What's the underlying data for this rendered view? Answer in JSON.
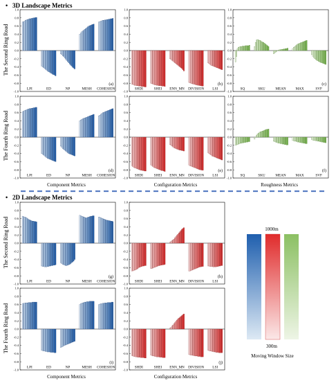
{
  "sections": [
    {
      "title": "3D Landscape Metrics"
    },
    {
      "title": "2D Landscape Metrics"
    }
  ],
  "row_labels": {
    "second": "The Second Ring Road",
    "fourth": "The Fourth Ring Road"
  },
  "group_labels": {
    "component": "Component Metrics",
    "configuration": "Configuration Metrics",
    "roughness": "Roughness Metrics"
  },
  "legend": {
    "top": "1000m",
    "bottom": "300m",
    "caption": "Moving Window Size",
    "colors": {
      "component": "#2f6cb0",
      "configuration": "#d93a3a",
      "roughness": "#8bbf5a"
    }
  },
  "chart_data": [
    {
      "panel": "(a)",
      "type": "bar",
      "family": "component",
      "ylim": [
        -1.0,
        1.0
      ],
      "yticks": [
        "1.0",
        "0.8",
        "0.6",
        "0.4",
        "0.2",
        "0.0",
        "-0.2",
        "-0.4",
        "-0.6",
        "-0.8",
        "-1.0"
      ],
      "categories": [
        "LPI",
        "ED",
        "NP",
        "MESH",
        "COHESION"
      ],
      "values": [
        [
          0.7,
          0.71,
          0.72,
          0.74,
          0.75,
          0.76,
          0.77,
          0.78,
          0.78,
          0.79,
          0.79,
          0.8,
          0.8,
          0.81,
          0.81
        ],
        [
          -0.38,
          -0.4,
          -0.42,
          -0.44,
          -0.46,
          -0.48,
          -0.5,
          -0.52,
          -0.53,
          -0.55,
          -0.56,
          -0.58,
          -0.59,
          -0.6,
          -0.62
        ],
        [
          -0.08,
          -0.1,
          -0.13,
          -0.15,
          -0.18,
          -0.21,
          -0.24,
          -0.27,
          -0.3,
          -0.33,
          -0.36,
          -0.38,
          -0.41,
          -0.43,
          -0.45
        ],
        [
          0.4,
          0.43,
          0.46,
          0.48,
          0.5,
          0.52,
          0.54,
          0.56,
          0.58,
          0.6,
          0.61,
          0.62,
          0.63,
          0.64,
          0.65
        ],
        [
          0.7,
          0.71,
          0.72,
          0.73,
          0.74,
          0.74,
          0.75,
          0.75,
          0.76,
          0.76,
          0.77,
          0.77,
          0.78,
          0.78,
          0.79
        ]
      ]
    },
    {
      "panel": "(b)",
      "type": "bar",
      "family": "configuration",
      "ylim": [
        -1.0,
        1.0
      ],
      "yticks": [
        "1.0",
        "0.8",
        "0.6",
        "0.4",
        "0.2",
        "0.0",
        "-0.2",
        "-0.4",
        "-0.6",
        "-0.8",
        "-1.0"
      ],
      "categories": [
        "SHDI",
        "SHEI",
        "ENN_MN",
        "DIVISION",
        "LSI"
      ],
      "values": [
        [
          -0.82,
          -0.83,
          -0.84,
          -0.85,
          -0.85,
          -0.86,
          -0.86,
          -0.87,
          -0.87,
          -0.87,
          -0.88,
          -0.88,
          -0.88,
          -0.89,
          -0.89
        ],
        [
          -0.8,
          -0.81,
          -0.82,
          -0.83,
          -0.84,
          -0.84,
          -0.85,
          -0.85,
          -0.86,
          -0.86,
          -0.86,
          -0.87,
          -0.87,
          -0.87,
          -0.88
        ],
        [
          -0.2,
          -0.22,
          -0.24,
          -0.26,
          -0.28,
          -0.3,
          -0.32,
          -0.34,
          -0.36,
          -0.38,
          -0.4,
          -0.42,
          -0.44,
          -0.47,
          -0.5
        ],
        [
          -0.78,
          -0.79,
          -0.8,
          -0.81,
          -0.82,
          -0.82,
          -0.83,
          -0.84,
          -0.84,
          -0.85,
          -0.85,
          -0.86,
          -0.86,
          -0.87,
          -0.87
        ],
        [
          -0.3,
          -0.32,
          -0.34,
          -0.36,
          -0.37,
          -0.38,
          -0.39,
          -0.4,
          -0.41,
          -0.42,
          -0.43,
          -0.44,
          -0.45,
          -0.46,
          -0.47
        ]
      ]
    },
    {
      "panel": "(c)",
      "type": "bar",
      "family": "roughness",
      "ylim": [
        -1.0,
        1.0
      ],
      "yticks": [
        "1.0",
        "0.8",
        "0.6",
        "0.4",
        "0.2",
        "0.0",
        "-0.2",
        "-0.4",
        "-0.6",
        "-0.8",
        "-1.0"
      ],
      "categories": [
        "SQ",
        "SKU",
        "MEAN",
        "MAX",
        "SVF"
      ],
      "values": [
        [
          -0.28,
          -0.15,
          0.05,
          0.08,
          0.09,
          0.1,
          0.1,
          0.11,
          0.11,
          0.11,
          0.12,
          0.12,
          0.12,
          0.12,
          0.13
        ],
        [
          0.1,
          0.2,
          0.26,
          0.27,
          0.26,
          0.25,
          0.24,
          0.22,
          0.21,
          0.2,
          0.18,
          0.16,
          0.14,
          0.12,
          0.1
        ],
        [
          -0.08,
          -0.06,
          -0.04,
          -0.02,
          0.0,
          0.01,
          0.02,
          0.02,
          0.03,
          0.03,
          0.04,
          0.04,
          0.05,
          0.05,
          0.06
        ],
        [
          0.05,
          0.08,
          0.1,
          0.12,
          0.14,
          0.16,
          0.17,
          0.18,
          0.19,
          0.2,
          0.21,
          0.22,
          0.23,
          0.24,
          0.25
        ],
        [
          -0.1,
          -0.14,
          -0.17,
          -0.2,
          -0.22,
          -0.24,
          -0.25,
          -0.27,
          -0.28,
          -0.29,
          -0.3,
          -0.31,
          -0.32,
          -0.33,
          -0.34
        ]
      ]
    },
    {
      "panel": "(d)",
      "type": "bar",
      "family": "component",
      "ylim": [
        -1.0,
        1.0
      ],
      "yticks": [
        "1.0",
        "0.8",
        "0.6",
        "0.4",
        "0.2",
        "0.0",
        "-0.2",
        "-0.4",
        "-0.6",
        "-0.8",
        "-1.0"
      ],
      "categories": [
        "LPI",
        "ED",
        "NP",
        "MESH",
        "COHESION"
      ],
      "values": [
        [
          0.62,
          0.64,
          0.65,
          0.66,
          0.67,
          0.68,
          0.69,
          0.7,
          0.7,
          0.71,
          0.71,
          0.72,
          0.72,
          0.73,
          0.73
        ],
        [
          -0.4,
          -0.42,
          -0.44,
          -0.46,
          -0.48,
          -0.5,
          -0.52,
          -0.53,
          -0.54,
          -0.55,
          -0.56,
          -0.57,
          -0.58,
          -0.59,
          -0.6
        ],
        [
          -0.22,
          -0.25,
          -0.28,
          -0.3,
          -0.32,
          -0.34,
          -0.36,
          -0.38,
          -0.4,
          -0.41,
          -0.42,
          -0.43,
          -0.44,
          -0.45,
          -0.46
        ],
        [
          0.4,
          0.42,
          0.44,
          0.45,
          0.46,
          0.47,
          0.48,
          0.49,
          0.5,
          0.51,
          0.52,
          0.53,
          0.54,
          0.55,
          0.56
        ],
        [
          0.52,
          0.54,
          0.56,
          0.58,
          0.6,
          0.61,
          0.62,
          0.63,
          0.64,
          0.65,
          0.66,
          0.67,
          0.68,
          0.69,
          0.7
        ]
      ]
    },
    {
      "panel": "(e)",
      "type": "bar",
      "family": "configuration",
      "ylim": [
        -1.0,
        1.0
      ],
      "yticks": [
        "1.0",
        "0.8",
        "0.6",
        "0.4",
        "0.2",
        "0.0",
        "-0.2",
        "-0.4",
        "-0.6",
        "-0.8",
        "-1.0"
      ],
      "categories": [
        "SHDI",
        "SHEI",
        "ENN_MN",
        "DIVISION",
        "LSI"
      ],
      "values": [
        [
          -0.7,
          -0.72,
          -0.74,
          -0.75,
          -0.76,
          -0.77,
          -0.78,
          -0.79,
          -0.8,
          -0.81,
          -0.81,
          -0.82,
          -0.82,
          -0.83,
          -0.83
        ],
        [
          -0.68,
          -0.7,
          -0.72,
          -0.74,
          -0.75,
          -0.76,
          -0.77,
          -0.78,
          -0.79,
          -0.8,
          -0.81,
          -0.82,
          -0.82,
          -0.83,
          -0.84
        ],
        [
          -0.18,
          -0.2,
          -0.22,
          -0.24,
          -0.26,
          -0.27,
          -0.28,
          -0.29,
          -0.3,
          -0.31,
          -0.32,
          -0.32,
          -0.33,
          -0.33,
          -0.34
        ],
        [
          -0.68,
          -0.7,
          -0.71,
          -0.72,
          -0.73,
          -0.74,
          -0.75,
          -0.76,
          -0.77,
          -0.78,
          -0.79,
          -0.8,
          -0.8,
          -0.81,
          -0.81
        ],
        [
          -0.38,
          -0.4,
          -0.42,
          -0.44,
          -0.46,
          -0.47,
          -0.48,
          -0.49,
          -0.5,
          -0.51,
          -0.52,
          -0.53,
          -0.54,
          -0.55,
          -0.56
        ]
      ]
    },
    {
      "panel": "(f)",
      "type": "bar",
      "family": "roughness",
      "ylim": [
        -1.0,
        1.0
      ],
      "yticks": [
        "1.0",
        "0.8",
        "0.6",
        "0.4",
        "0.2",
        "0.0",
        "-0.2",
        "-0.4",
        "-0.6",
        "-0.8",
        "-1.0"
      ],
      "categories": [
        "SQ",
        "SKU",
        "MEAN",
        "MAX",
        "SVF"
      ],
      "values": [
        [
          -0.2,
          -0.19,
          -0.18,
          -0.17,
          -0.16,
          -0.15,
          -0.15,
          -0.14,
          -0.14,
          -0.13,
          -0.13,
          -0.12,
          -0.12,
          -0.11,
          -0.11
        ],
        [
          -0.05,
          0.0,
          0.05,
          0.08,
          0.1,
          0.12,
          0.13,
          0.14,
          0.15,
          0.16,
          0.17,
          0.18,
          0.19,
          0.19,
          0.2
        ],
        [
          -0.1,
          -0.11,
          -0.12,
          -0.13,
          -0.14,
          -0.15,
          -0.15,
          -0.16,
          -0.16,
          -0.17,
          -0.17,
          -0.18,
          -0.18,
          -0.19,
          -0.19
        ],
        [
          -0.08,
          -0.09,
          -0.1,
          -0.1,
          -0.11,
          -0.12,
          -0.12,
          -0.13,
          -0.13,
          -0.14,
          -0.14,
          -0.15,
          -0.15,
          -0.16,
          -0.16
        ],
        [
          -0.06,
          -0.07,
          -0.08,
          -0.08,
          -0.09,
          -0.09,
          -0.1,
          -0.1,
          -0.11,
          -0.11,
          -0.12,
          -0.12,
          -0.13,
          -0.13,
          -0.14
        ]
      ]
    },
    {
      "panel": "(g)",
      "type": "bar",
      "family": "component",
      "ylim": [
        -1.0,
        1.0
      ],
      "yticks": [
        "1.0",
        "0.8",
        "0.6",
        "0.4",
        "0.2",
        "0.0",
        "-0.2",
        "-0.4",
        "-0.6",
        "-0.8",
        "-1.0"
      ],
      "categories": [
        "LPI",
        "ED",
        "NP",
        "MESH",
        "COHESION"
      ],
      "values": [
        [
          0.66,
          0.65,
          0.64,
          0.63,
          0.62,
          0.6,
          0.58,
          0.57,
          0.56,
          0.55,
          0.54,
          0.54,
          0.53,
          0.53,
          0.52
        ],
        [
          -0.56,
          -0.57,
          -0.57,
          -0.58,
          -0.58,
          -0.58,
          -0.57,
          -0.57,
          -0.56,
          -0.56,
          -0.55,
          -0.55,
          -0.54,
          -0.54,
          -0.53
        ],
        [
          -0.48,
          -0.5,
          -0.52,
          -0.53,
          -0.54,
          -0.55,
          -0.55,
          -0.54,
          -0.53,
          -0.52,
          -0.5,
          -0.48,
          -0.46,
          -0.44,
          -0.4
        ],
        [
          0.68,
          0.67,
          0.66,
          0.65,
          0.64,
          0.63,
          0.62,
          0.62,
          0.63,
          0.64,
          0.65,
          0.66,
          0.66,
          0.67,
          0.67
        ],
        [
          0.64,
          0.63,
          0.62,
          0.61,
          0.6,
          0.59,
          0.58,
          0.57,
          0.56,
          0.56,
          0.55,
          0.55,
          0.54,
          0.54,
          0.53
        ]
      ]
    },
    {
      "panel": "(h)",
      "type": "bar",
      "family": "configuration",
      "ylim": [
        -1.0,
        1.0
      ],
      "yticks": [
        "1.0",
        "0.8",
        "0.6",
        "0.4",
        "0.2",
        "0.0",
        "-0.2",
        "-0.4",
        "-0.6",
        "-0.8",
        "-1.0"
      ],
      "categories": [
        "SHDI",
        "SHEI",
        "ENN_MN",
        "DIVISION",
        "LSI"
      ],
      "values": [
        [
          -0.68,
          -0.68,
          -0.67,
          -0.66,
          -0.65,
          -0.64,
          -0.62,
          -0.6,
          -0.59,
          -0.58,
          -0.57,
          -0.56,
          -0.56,
          -0.55,
          -0.55
        ],
        [
          -0.62,
          -0.62,
          -0.61,
          -0.6,
          -0.59,
          -0.58,
          -0.57,
          -0.56,
          -0.55,
          -0.55,
          -0.54,
          -0.54,
          -0.53,
          -0.53,
          -0.52
        ],
        [
          0.02,
          0.04,
          0.06,
          0.08,
          0.1,
          0.13,
          0.16,
          0.19,
          0.22,
          0.25,
          0.28,
          0.31,
          0.34,
          0.36,
          0.38
        ],
        [
          -0.68,
          -0.68,
          -0.67,
          -0.66,
          -0.65,
          -0.64,
          -0.63,
          -0.62,
          -0.61,
          -0.6,
          -0.59,
          -0.58,
          -0.58,
          -0.57,
          -0.57
        ],
        [
          -0.56,
          -0.56,
          -0.57,
          -0.57,
          -0.57,
          -0.58,
          -0.58,
          -0.58,
          -0.58,
          -0.57,
          -0.57,
          -0.56,
          -0.56,
          -0.55,
          -0.55
        ]
      ]
    },
    {
      "panel": "(i)",
      "type": "bar",
      "family": "component",
      "ylim": [
        -1.0,
        1.0
      ],
      "yticks": [
        "1.0",
        "0.8",
        "0.6",
        "0.4",
        "0.2",
        "0.0",
        "-0.2",
        "-0.4",
        "-0.6",
        "-0.8",
        "-1.0"
      ],
      "categories": [
        "LPI",
        "ED",
        "NP",
        "MESH",
        "COHESION"
      ],
      "values": [
        [
          0.62,
          0.63,
          0.63,
          0.64,
          0.64,
          0.64,
          0.65,
          0.65,
          0.65,
          0.65,
          0.66,
          0.66,
          0.66,
          0.66,
          0.66
        ],
        [
          -0.52,
          -0.53,
          -0.54,
          -0.54,
          -0.55,
          -0.55,
          -0.56,
          -0.56,
          -0.56,
          -0.57,
          -0.57,
          -0.57,
          -0.57,
          -0.58,
          -0.58
        ],
        [
          -0.45,
          -0.44,
          -0.43,
          -0.41,
          -0.4,
          -0.39,
          -0.38,
          -0.37,
          -0.36,
          -0.35,
          -0.34,
          -0.33,
          -0.32,
          -0.31,
          -0.3
        ],
        [
          0.6,
          0.62,
          0.63,
          0.64,
          0.65,
          0.66,
          0.66,
          0.67,
          0.67,
          0.67,
          0.68,
          0.68,
          0.68,
          0.68,
          0.68
        ],
        [
          0.6,
          0.61,
          0.62,
          0.62,
          0.63,
          0.63,
          0.64,
          0.64,
          0.64,
          0.65,
          0.65,
          0.65,
          0.65,
          0.66,
          0.66
        ]
      ]
    },
    {
      "panel": "(j)",
      "type": "bar",
      "family": "configuration",
      "ylim": [
        -1.0,
        1.0
      ],
      "yticks": [
        "1.0",
        "0.8",
        "0.6",
        "0.4",
        "0.2",
        "0.0",
        "-0.2",
        "-0.4",
        "-0.6",
        "-0.8",
        "-1.0"
      ],
      "categories": [
        "SHDI",
        "SHEI",
        "ENN_MN",
        "DIVISION",
        "LSI"
      ],
      "values": [
        [
          -0.65,
          -0.66,
          -0.67,
          -0.67,
          -0.68,
          -0.68,
          -0.69,
          -0.69,
          -0.69,
          -0.7,
          -0.7,
          -0.7,
          -0.7,
          -0.71,
          -0.71
        ],
        [
          -0.64,
          -0.65,
          -0.66,
          -0.66,
          -0.67,
          -0.67,
          -0.68,
          -0.68,
          -0.68,
          -0.69,
          -0.69,
          -0.69,
          -0.7,
          -0.7,
          -0.7
        ],
        [
          0.02,
          0.04,
          0.07,
          0.1,
          0.13,
          0.16,
          0.19,
          0.22,
          0.25,
          0.27,
          0.29,
          0.31,
          0.33,
          0.35,
          0.37
        ],
        [
          -0.62,
          -0.63,
          -0.64,
          -0.64,
          -0.65,
          -0.65,
          -0.66,
          -0.66,
          -0.66,
          -0.67,
          -0.67,
          -0.67,
          -0.68,
          -0.68,
          -0.68
        ],
        [
          -0.52,
          -0.53,
          -0.54,
          -0.54,
          -0.55,
          -0.55,
          -0.56,
          -0.56,
          -0.57,
          -0.57,
          -0.57,
          -0.58,
          -0.58,
          -0.58,
          -0.58
        ]
      ]
    }
  ]
}
